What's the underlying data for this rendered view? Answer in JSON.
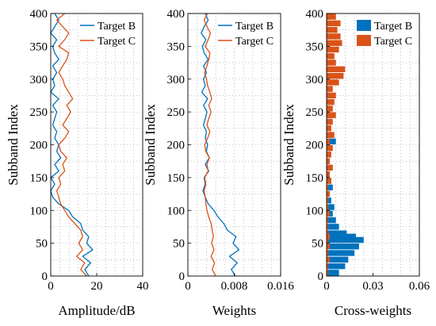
{
  "colors": {
    "target_b": "#0072BD",
    "target_c": "#D95319",
    "grid": "#9a9a9a",
    "axis": "#000000"
  },
  "chart_data": [
    {
      "type": "line",
      "xlabel": "Amplitude/dB",
      "ylabel": "Subband Index",
      "xlim": [
        -6,
        40
      ],
      "ylim": [
        0,
        400
      ],
      "xticks": [
        "0",
        "20",
        "40"
      ],
      "yticks": [
        "0",
        "50",
        "100",
        "150",
        "200",
        "250",
        "300",
        "350",
        "400"
      ],
      "grid": true,
      "legend": {
        "position": "top-right",
        "entries": [
          "Target B",
          "Target C"
        ]
      },
      "series": [
        {
          "name": "Target B",
          "color": "#0072BD",
          "y": [
            0,
            10,
            20,
            30,
            40,
            50,
            60,
            70,
            80,
            90,
            100,
            110,
            120,
            130,
            140,
            150,
            160,
            170,
            180,
            190,
            200,
            210,
            220,
            230,
            240,
            250,
            260,
            270,
            280,
            290,
            300,
            310,
            320,
            330,
            340,
            350,
            360,
            370,
            380,
            390,
            400
          ],
          "x": [
            13,
            11,
            14,
            10,
            15,
            12,
            13,
            10,
            9,
            5,
            3,
            -2,
            -5,
            -6,
            -4,
            -6,
            -2,
            -4,
            -1,
            -3,
            -2,
            -4,
            -3,
            -5,
            -4,
            -3,
            -5,
            -2,
            -6,
            -4,
            -5,
            -3,
            -5,
            -2,
            -4,
            -5,
            -3,
            -6,
            -4,
            -2,
            -4
          ]
        },
        {
          "name": "Target C",
          "color": "#D95319",
          "y": [
            0,
            10,
            20,
            30,
            40,
            50,
            60,
            70,
            80,
            90,
            100,
            110,
            120,
            130,
            140,
            150,
            160,
            170,
            180,
            190,
            200,
            210,
            220,
            230,
            240,
            250,
            260,
            270,
            280,
            290,
            300,
            310,
            320,
            330,
            340,
            350,
            360,
            370,
            380,
            390,
            400
          ],
          "x": [
            12,
            9,
            11,
            7,
            10,
            8,
            10,
            9,
            6,
            3,
            1,
            -1,
            -2,
            -3,
            -1,
            -2,
            1,
            0,
            2,
            -1,
            -2,
            1,
            3,
            0,
            2,
            4,
            2,
            5,
            3,
            1,
            0,
            -2,
            0,
            2,
            3,
            -2,
            1,
            3,
            0,
            -3,
            1
          ]
        }
      ]
    },
    {
      "type": "line",
      "xlabel": "Weights",
      "ylabel": "Subband Index",
      "xlim": [
        0,
        0.016
      ],
      "ylim": [
        0,
        400
      ],
      "xticks": [
        "0",
        "0.008",
        "0.016"
      ],
      "yticks": [
        "0",
        "50",
        "100",
        "150",
        "200",
        "250",
        "300",
        "350",
        "400"
      ],
      "grid": true,
      "legend": {
        "position": "top-right",
        "entries": [
          "Target B",
          "Target C"
        ]
      },
      "series": [
        {
          "name": "Target B",
          "color": "#0072BD",
          "y": [
            0,
            10,
            20,
            30,
            40,
            50,
            60,
            70,
            80,
            90,
            100,
            110,
            120,
            130,
            140,
            150,
            160,
            170,
            180,
            190,
            200,
            210,
            220,
            230,
            240,
            250,
            260,
            270,
            280,
            290,
            300,
            310,
            320,
            330,
            340,
            350,
            360,
            370,
            380,
            390,
            400
          ],
          "x": [
            0.0082,
            0.0075,
            0.0085,
            0.0072,
            0.0088,
            0.0078,
            0.0083,
            0.0068,
            0.0062,
            0.0052,
            0.0045,
            0.0035,
            0.003,
            0.0026,
            0.003,
            0.0028,
            0.0036,
            0.003,
            0.0037,
            0.0032,
            0.0034,
            0.003,
            0.0032,
            0.0027,
            0.003,
            0.0033,
            0.0027,
            0.0034,
            0.0024,
            0.003,
            0.0027,
            0.0032,
            0.0027,
            0.0035,
            0.0028,
            0.0025,
            0.0031,
            0.0023,
            0.0028,
            0.0035,
            0.003
          ]
        },
        {
          "name": "Target C",
          "color": "#D95319",
          "y": [
            0,
            10,
            20,
            30,
            40,
            50,
            60,
            70,
            80,
            90,
            100,
            110,
            120,
            130,
            140,
            150,
            160,
            170,
            180,
            190,
            200,
            210,
            220,
            230,
            240,
            250,
            260,
            270,
            280,
            290,
            300,
            310,
            320,
            330,
            340,
            350,
            360,
            370,
            380,
            390,
            400
          ],
          "x": [
            0.0048,
            0.0042,
            0.0046,
            0.004,
            0.0045,
            0.0041,
            0.0044,
            0.0042,
            0.004,
            0.0036,
            0.0033,
            0.0031,
            0.003,
            0.0028,
            0.0031,
            0.0029,
            0.0035,
            0.0033,
            0.0037,
            0.0031,
            0.0029,
            0.0034,
            0.0038,
            0.0033,
            0.0036,
            0.004,
            0.0036,
            0.0041,
            0.0038,
            0.0034,
            0.0032,
            0.0029,
            0.0033,
            0.0036,
            0.0038,
            0.003,
            0.0035,
            0.0039,
            0.0033,
            0.0028,
            0.0034
          ]
        }
      ]
    },
    {
      "type": "bar",
      "orientation": "horizontal",
      "xlabel": "Cross-weights",
      "ylabel": "Subband Index",
      "xlim": [
        0,
        0.06
      ],
      "ylim": [
        0,
        400
      ],
      "xticks": [
        "0",
        "0.03",
        "0.06"
      ],
      "yticks": [
        "0",
        "50",
        "100",
        "150",
        "200",
        "250",
        "300",
        "350",
        "400"
      ],
      "grid": true,
      "legend": {
        "position": "top-right",
        "entries": [
          "Target B",
          "Target C"
        ]
      },
      "series": [
        {
          "name": "Target B",
          "color": "#0072BD",
          "y": [
            5,
            15,
            25,
            35,
            45,
            55,
            60,
            65,
            75,
            85,
            95,
            105,
            115,
            125,
            135,
            145,
            155,
            165,
            175,
            185,
            195,
            205,
            215,
            225,
            235,
            245,
            255,
            265,
            275,
            285,
            295,
            305,
            315,
            325,
            335,
            345,
            355,
            365,
            375,
            385,
            395
          ],
          "x": [
            0.008,
            0.012,
            0.014,
            0.018,
            0.021,
            0.024,
            0.019,
            0.013,
            0.008,
            0.006,
            0.004,
            0.005,
            0.003,
            0.002,
            0.004,
            0.003,
            0.002,
            0.003,
            0.002,
            0.001,
            0.003,
            0.006,
            0.003,
            0.002,
            0.003,
            0.002,
            0.001,
            0.002,
            0.001,
            0.002,
            0.001,
            0.001,
            0.002,
            0.001,
            0.001,
            0.002,
            0.001,
            0.001,
            0.002,
            0.001,
            0.002
          ]
        },
        {
          "name": "Target C",
          "color": "#D95319",
          "y": [
            5,
            15,
            25,
            35,
            45,
            55,
            60,
            65,
            75,
            85,
            95,
            105,
            115,
            125,
            135,
            145,
            155,
            165,
            175,
            185,
            195,
            205,
            215,
            225,
            235,
            245,
            255,
            265,
            275,
            285,
            295,
            305,
            315,
            325,
            335,
            345,
            355,
            365,
            375,
            385,
            395
          ],
          "x": [
            0.001,
            0.001,
            0.002,
            0.001,
            0.002,
            0.001,
            0.002,
            0.001,
            0.001,
            0.001,
            0.002,
            0.001,
            0.001,
            0.002,
            0.001,
            0.003,
            0.002,
            0.004,
            0.002,
            0.003,
            0.004,
            0.002,
            0.005,
            0.003,
            0.004,
            0.006,
            0.004,
            0.005,
            0.006,
            0.004,
            0.008,
            0.011,
            0.012,
            0.006,
            0.005,
            0.008,
            0.01,
            0.009,
            0.007,
            0.009,
            0.006
          ]
        }
      ]
    }
  ]
}
